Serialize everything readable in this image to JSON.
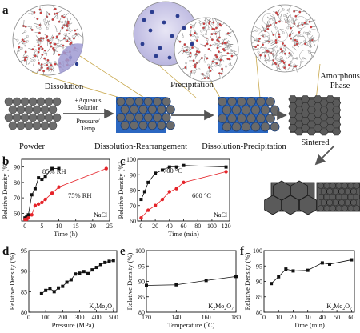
{
  "panel_letters": [
    "a",
    "b",
    "c",
    "d",
    "e",
    "f"
  ],
  "schematic": {
    "process_labels": [
      "Powder",
      "Dissolution-Rearrangement",
      "Dissolution-Precipitation",
      "Sintered"
    ],
    "bubble_labels": [
      "Dissolution",
      "Precipitation",
      "Amorphous Phase"
    ],
    "arrow_note": [
      "+Aqueous",
      "Solution",
      "Pressure/",
      "Temp"
    ]
  },
  "chart_data": [
    {
      "type": "line",
      "panel": "b",
      "xlabel": "Time (h)",
      "ylabel": "Relative Density (%)",
      "xlim": [
        -1,
        25
      ],
      "ylim": [
        55,
        95
      ],
      "xticks": [
        0,
        5,
        10,
        15,
        20,
        25
      ],
      "yticks": [
        60,
        70,
        80,
        90
      ],
      "annotation": "NaCl",
      "series": [
        {
          "name": "85% RH",
          "color": "#111111",
          "x": [
            0,
            0.5,
            1,
            2,
            3,
            4,
            5,
            6,
            8,
            10
          ],
          "y": [
            57,
            58,
            59,
            72,
            76,
            83,
            82,
            84,
            89,
            89
          ]
        },
        {
          "name": "75% RH",
          "color": "#e52329",
          "x": [
            0,
            0.5,
            1,
            2,
            3,
            4,
            5,
            6,
            8,
            10,
            24
          ],
          "y": [
            56,
            56,
            57,
            59,
            65,
            66,
            67,
            69,
            73,
            77,
            89
          ]
        }
      ]
    },
    {
      "type": "line",
      "panel": "c",
      "xlabel": "Time (min)",
      "ylabel": "Relative Density (%)",
      "xlim": [
        -5,
        125
      ],
      "ylim": [
        60,
        100
      ],
      "xticks": [
        0,
        20,
        40,
        60,
        80,
        100,
        120
      ],
      "yticks": [
        60,
        70,
        80,
        90,
        100
      ],
      "annotation": "NaCl",
      "series": [
        {
          "name": "700 °C",
          "color": "#111111",
          "x": [
            0,
            5,
            10,
            20,
            30,
            40,
            50,
            60,
            120
          ],
          "y": [
            74,
            79,
            85,
            91,
            93,
            95,
            95,
            96,
            95
          ]
        },
        {
          "name": "600 °C",
          "color": "#e52329",
          "x": [
            0,
            10,
            20,
            30,
            40,
            50,
            60,
            120
          ],
          "y": [
            62,
            67,
            70,
            74,
            79,
            81,
            85,
            92
          ]
        }
      ]
    },
    {
      "type": "line",
      "panel": "d",
      "xlabel": "Pressure (MPa)",
      "ylabel": "Relative Density (%)",
      "xlim": [
        0,
        520
      ],
      "ylim": [
        80,
        95
      ],
      "xticks": [
        0,
        100,
        200,
        300,
        400,
        500
      ],
      "yticks": [
        80,
        85,
        90,
        95
      ],
      "annotation": "K2Mo2O7",
      "series": [
        {
          "color": "#111111",
          "x": [
            75,
            100,
            125,
            150,
            175,
            200,
            225,
            250,
            275,
            300,
            325,
            350,
            375,
            400,
            425,
            450,
            475,
            500
          ],
          "y": [
            84.5,
            85.3,
            85.8,
            85.0,
            85.9,
            86.3,
            87.3,
            87.9,
            89.3,
            89.5,
            89.9,
            89.4,
            90.3,
            90.9,
            91.6,
            92.1,
            92.4,
            92.6
          ]
        }
      ]
    },
    {
      "type": "line",
      "panel": "e",
      "xlabel": "Temperature (°C)",
      "ylabel": "Relative Density (%)",
      "xlim": [
        120,
        180
      ],
      "ylim": [
        80,
        100
      ],
      "xticks": [
        120,
        140,
        160,
        180
      ],
      "yticks": [
        80,
        85,
        90,
        95,
        100
      ],
      "annotation": "K2Mo2O7",
      "series": [
        {
          "color": "#111111",
          "x": [
            120,
            140,
            160,
            180
          ],
          "y": [
            88.7,
            88.9,
            90.3,
            91.6
          ]
        }
      ]
    },
    {
      "type": "line",
      "panel": "f",
      "xlabel": "Time (min)",
      "ylabel": "Relative Density (%)",
      "xlim": [
        0,
        62
      ],
      "ylim": [
        80,
        100
      ],
      "xticks": [
        0,
        10,
        20,
        30,
        40,
        50,
        60
      ],
      "yticks": [
        80,
        85,
        90,
        95,
        100
      ],
      "annotation": "K2Mo2O7",
      "series": [
        {
          "color": "#111111",
          "x": [
            5,
            10,
            15,
            20,
            30,
            40,
            45,
            60
          ],
          "y": [
            89.3,
            91.5,
            94.0,
            93.4,
            93.6,
            96.0,
            95.6,
            97.0
          ]
        }
      ]
    }
  ],
  "colors": {
    "particle_gray": "#6d6d6d",
    "liquid_blue": "#1f5fb8",
    "bubble_lavender": "#c9c6e6",
    "oxygen_red": "#d8393a",
    "accent_red": "#e52329",
    "outline_gold": "#c8a74a"
  }
}
